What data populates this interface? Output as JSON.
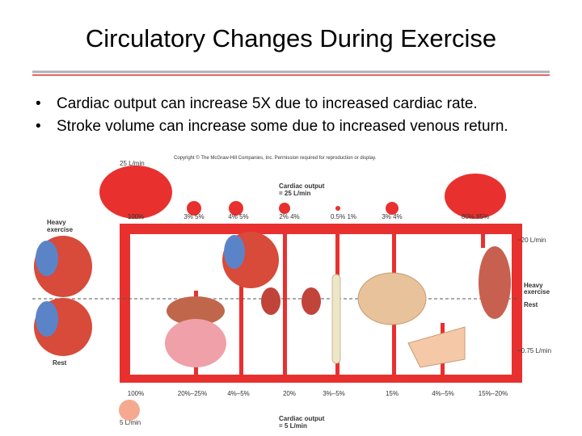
{
  "title": "Circulatory Changes During Exercise",
  "bullets": [
    "Cardiac output can increase 5X due to increased cardiac rate.",
    "Stroke volume can increase some due to increased venous return."
  ],
  "figure": {
    "copyright": "Copyright © The McGraw-Hill Companies, Inc. Permission required for reproduction or display.",
    "top_flow": "25 L/min",
    "top_output": [
      "Cardiac output",
      "= 25 L/min"
    ],
    "top_percents": [
      "100%",
      "3% 5%",
      "4% 5%",
      "2% 4%",
      "0.5% 1%",
      "3% 4%",
      "80% 85%"
    ],
    "left_labels": [
      "Heavy",
      "exercise",
      "Rest"
    ],
    "right_labels": [
      "~20 L/min",
      "Heavy",
      "exercise",
      "Rest",
      "~0.75 L/min"
    ],
    "bottom_percents": [
      "100%",
      "20%–25%",
      "4%–5%",
      "20%",
      "3%–5%",
      "15%",
      "4%–5%",
      "15%–20%"
    ],
    "bottom_flow": "5 L/min",
    "bottom_output": [
      "Cardiac output",
      "= 5 L/min"
    ]
  }
}
